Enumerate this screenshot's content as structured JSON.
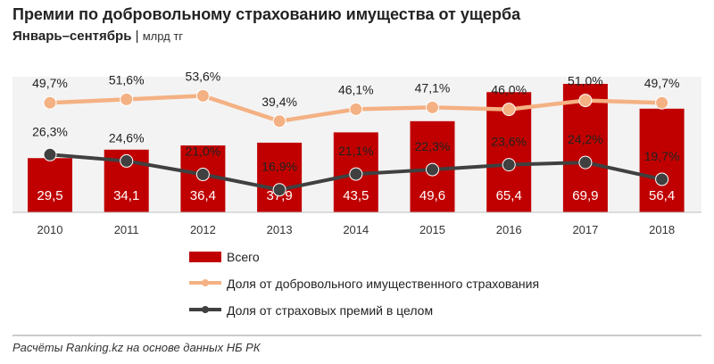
{
  "header": {
    "title": "Премии по добровольному страхованию имущества от ущерба",
    "subtitle_period": "Январь–сентябрь",
    "subtitle_sep": "|",
    "subtitle_unit": "млрд тг"
  },
  "footer": {
    "source": "Расчёты Ranking.kz на основе данных НБ РК"
  },
  "chart_data": {
    "type": "bar+line",
    "title": "Премии по добровольному страхованию имущества от ущерба",
    "subtitle": "Январь–сентябрь | млрд тг",
    "categories": [
      "2010",
      "2011",
      "2012",
      "2013",
      "2014",
      "2015",
      "2016",
      "2017",
      "2018"
    ],
    "bar_series": {
      "name": "Всего",
      "values": [
        29.5,
        34.1,
        36.4,
        37.9,
        43.5,
        49.6,
        65.4,
        69.9,
        56.4
      ],
      "labels": [
        "29,5",
        "34,1",
        "36,4",
        "37,9",
        "43,5",
        "49,6",
        "65,4",
        "69,9",
        "56,4"
      ],
      "color": "#c00000"
    },
    "line_series": [
      {
        "name": "Доля от добровольного имущественного страхования",
        "values": [
          49.7,
          51.6,
          53.6,
          39.4,
          46.1,
          47.1,
          46.0,
          51.0,
          49.7
        ],
        "labels": [
          "49,7%",
          "51,6%",
          "53,6%",
          "39,4%",
          "46,1%",
          "47,1%",
          "46,0%",
          "51,0%",
          "49,7%"
        ],
        "color": "#f4b183"
      },
      {
        "name": "Доля от страховых премий в целом",
        "values": [
          26.3,
          24.6,
          21.0,
          16.9,
          21.1,
          22.3,
          23.6,
          24.2,
          19.7
        ],
        "labels": [
          "26,3%",
          "24,6%",
          "21,0%",
          "16,9%",
          "21,1%",
          "22,3%",
          "23,6%",
          "24,2%",
          "19,7%"
        ],
        "color": "#404040"
      }
    ],
    "legend": [
      "Всего",
      "Доля от добровольного имущественного страхования",
      "Доля от страховых премий в целом"
    ],
    "legend_position": "bottom-center"
  }
}
